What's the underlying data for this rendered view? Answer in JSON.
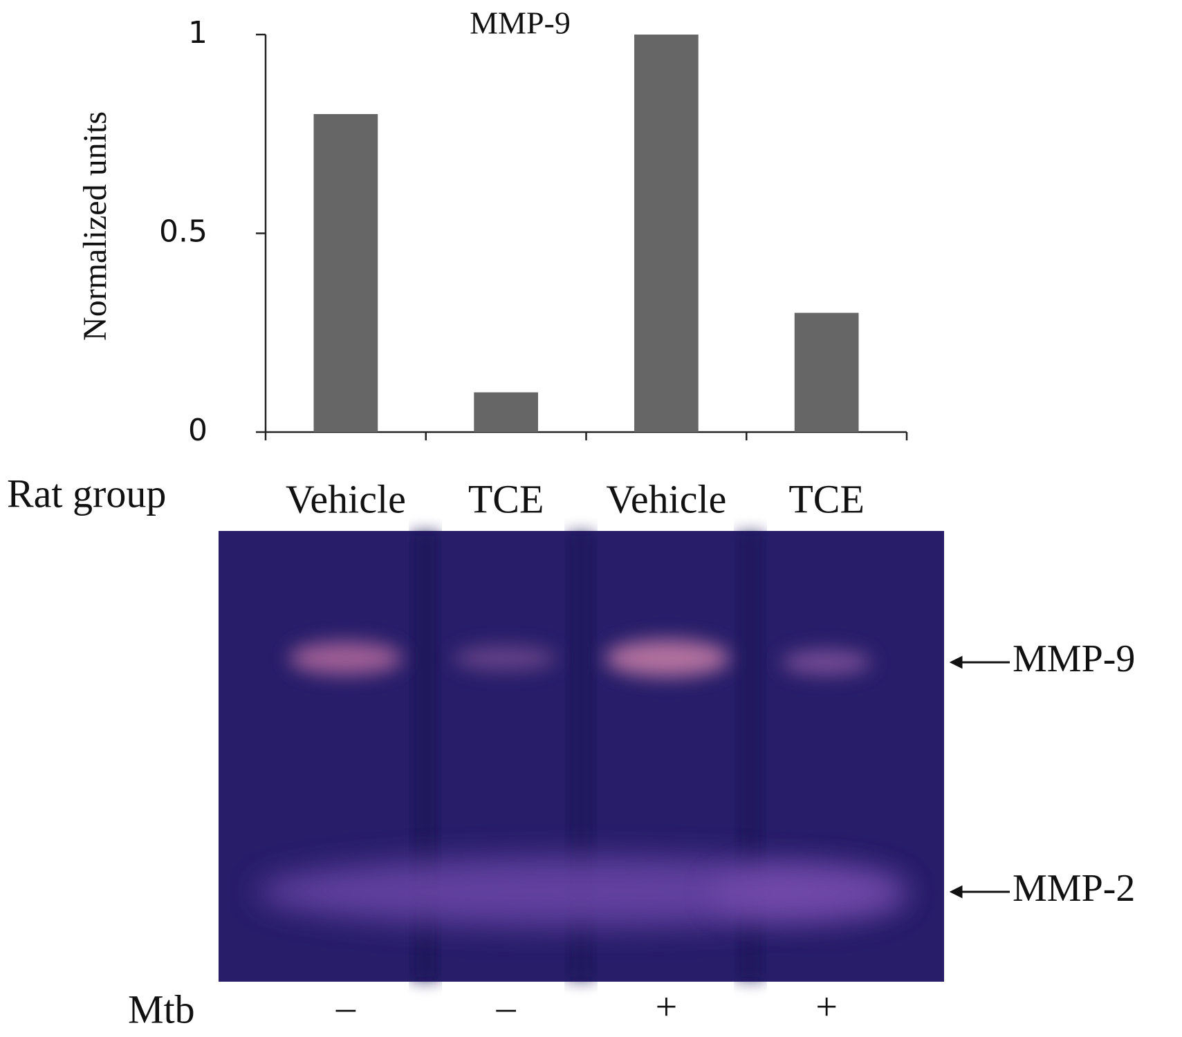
{
  "chart_data": {
    "type": "bar",
    "title": "MMP-9",
    "ylabel": "Normalized units",
    "xlabel": "Rat group",
    "categories": [
      "Vehicle",
      "TCE",
      "Vehicle",
      "TCE"
    ],
    "values": [
      0.8,
      0.1,
      1.0,
      0.3
    ],
    "color": "#666666",
    "ylim": [
      0,
      1
    ],
    "yticks": [
      0,
      0.5,
      1
    ]
  },
  "gel": {
    "row_label": "Mtb",
    "treatments": [
      "–",
      "–",
      "+",
      "+"
    ],
    "band_labels": [
      "MMP-9",
      "MMP-2"
    ]
  }
}
